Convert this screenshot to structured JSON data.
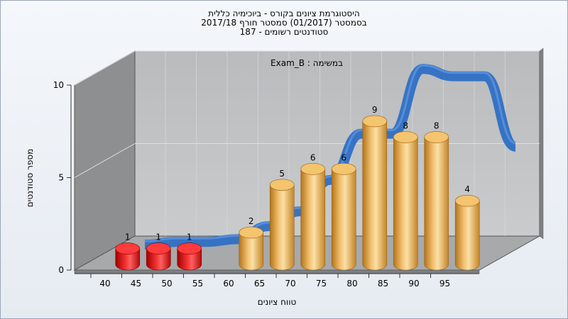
{
  "chart_data": {
    "type": "bar",
    "title_lines": [
      "היסטוגרמת ציונים בקורס - ביוכימיה כללית",
      "בסמסטר  (01/2017)  סמסטר חורף  2017/18",
      "סטודנטים רשומים - 187"
    ],
    "annotation": "במשימה : Exam_B",
    "xlabel": "טווח ציונים",
    "ylabel": "מספר סטודנטים",
    "ylim": [
      0,
      10
    ],
    "yticks": [
      0,
      5,
      10
    ],
    "x_ticks": [
      40,
      45,
      50,
      55,
      60,
      65,
      70,
      75,
      80,
      85,
      90,
      95
    ],
    "bars": [
      {
        "x": 42.5,
        "value": 1,
        "color": "red"
      },
      {
        "x": 47.5,
        "value": 1,
        "color": "red"
      },
      {
        "x": 52.5,
        "value": 1,
        "color": "red"
      },
      {
        "x": 62.5,
        "value": 2,
        "color": "orange"
      },
      {
        "x": 67.5,
        "value": 5,
        "color": "orange"
      },
      {
        "x": 72.5,
        "value": 6,
        "color": "orange"
      },
      {
        "x": 77.5,
        "value": 6,
        "color": "orange"
      },
      {
        "x": 82.5,
        "value": 9,
        "color": "orange"
      },
      {
        "x": 87.5,
        "value": 8,
        "color": "orange"
      },
      {
        "x": 92.5,
        "value": 8,
        "color": "orange"
      },
      {
        "x": 97.5,
        "value": 4,
        "color": "orange"
      }
    ],
    "curve": {
      "x": [
        40,
        45,
        50,
        55,
        60,
        65,
        70,
        75,
        80,
        85,
        90,
        95,
        100
      ],
      "y": [
        0.3,
        0.45,
        0.45,
        0.6,
        1.3,
        2.1,
        3.8,
        6.3,
        6.3,
        9.8,
        9.4,
        9.4,
        5.6
      ],
      "color": "#2f6fc4"
    },
    "grid": true,
    "colors": {
      "red_bar": "#e21a1a",
      "orange_bar": "#e8a84a",
      "curve": "#2f6fc4"
    }
  }
}
